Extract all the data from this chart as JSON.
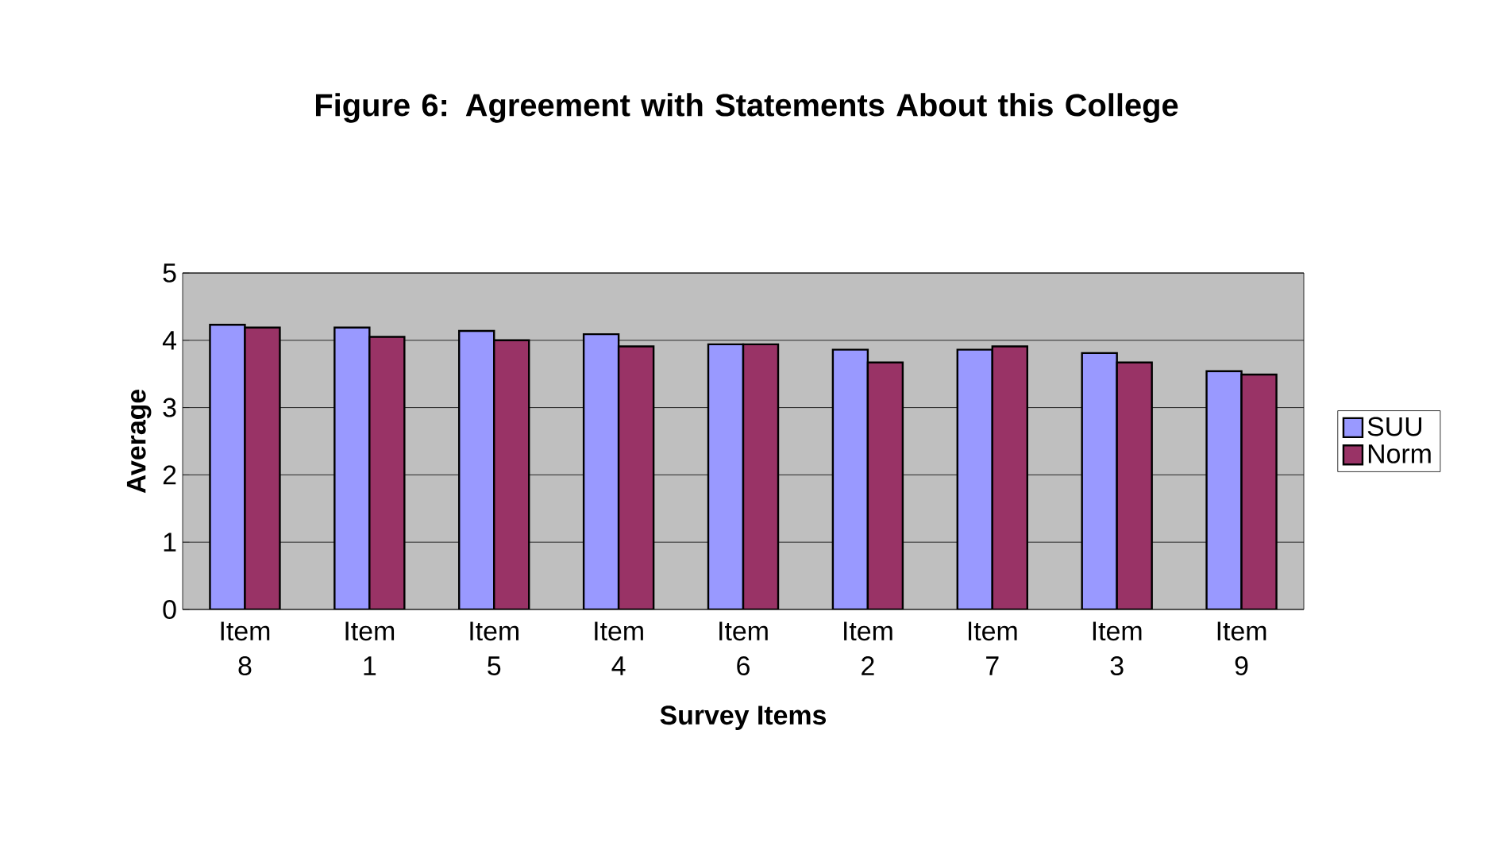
{
  "chart_data": {
    "type": "bar",
    "title": "Figure 6: Agreement with Statements About this College",
    "xlabel": "Survey Items",
    "ylabel": "Average",
    "categories": [
      "Item 8",
      "Item 1",
      "Item 5",
      "Item 4",
      "Item 6",
      "Item 2",
      "Item 7",
      "Item 3",
      "Item 9"
    ],
    "series": [
      {
        "name": "SUU",
        "color": "#9999ff",
        "values": [
          4.23,
          4.19,
          4.14,
          4.09,
          3.94,
          3.86,
          3.86,
          3.81,
          3.54
        ]
      },
      {
        "name": "Norm",
        "color": "#993366",
        "values": [
          4.19,
          4.05,
          4.0,
          3.91,
          3.94,
          3.67,
          3.91,
          3.67,
          3.49
        ]
      }
    ],
    "ylim": [
      0,
      5
    ],
    "yticks": [
      0,
      1,
      2,
      3,
      4,
      5
    ],
    "grid": "y",
    "legend": "right"
  }
}
